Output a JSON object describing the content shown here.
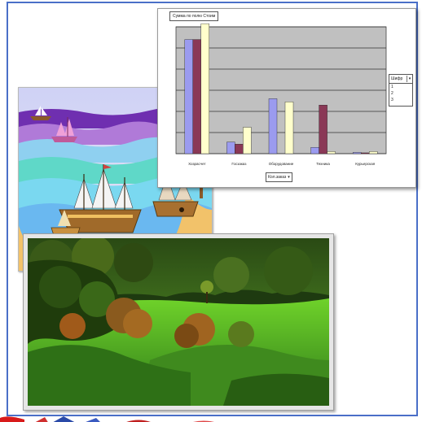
{
  "chart_data": {
    "type": "bar",
    "title": "Суммa по полю Стоим",
    "categories": [
      "Хозрасчет",
      "Госзаказ",
      "Оборудование",
      "Техника",
      "Курьерская"
    ],
    "series": [
      {
        "name": "1",
        "color": "#9b9bef",
        "values": [
          1080,
          110,
          520,
          60,
          12
        ]
      },
      {
        "name": "2",
        "color": "#8a3856",
        "values": [
          1080,
          90,
          0,
          460,
          8
        ]
      },
      {
        "name": "3",
        "color": "#ffffcc",
        "values": [
          1230,
          250,
          490,
          20,
          20
        ]
      }
    ],
    "y_ticks": [
      "",
      "",
      "",
      "",
      "",
      "",
      ""
    ],
    "ylim": [
      0,
      1200
    ],
    "legend": "right",
    "legend_title": "Шифр",
    "x_field": "Кол.заказ",
    "grid": true
  }
}
